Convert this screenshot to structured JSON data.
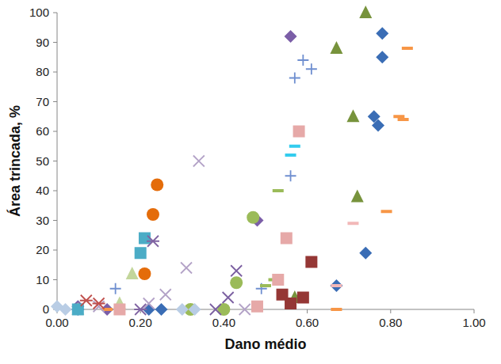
{
  "chart_data": {
    "type": "scatter",
    "x_label": "Dano médio",
    "y_label": "Área trincada, %",
    "xlim": [
      0,
      1
    ],
    "ylim": [
      0,
      100
    ],
    "xticks": [
      {
        "value": 0,
        "label": "0.00"
      },
      {
        "value": 0.2,
        "label": "0.20"
      },
      {
        "value": 0.4,
        "label": "0.40"
      },
      {
        "value": 0.6,
        "label": "0.60"
      },
      {
        "value": 0.8,
        "label": "0.80"
      },
      {
        "value": 1,
        "label": "1.00"
      }
    ],
    "yticks": [
      0,
      10,
      20,
      30,
      40,
      50,
      60,
      70,
      80,
      90,
      100
    ],
    "grid": false,
    "series": [
      {
        "color": "#3a6db5",
        "marker": "diamond",
        "x": [
          0.78,
          0.78,
          0.76,
          0.77,
          0.74,
          0.67,
          0.25,
          0.22,
          0.05
        ],
        "values": [
          93,
          85,
          65,
          62,
          19,
          8,
          0,
          0,
          0
        ]
      },
      {
        "color": "#7b5ea7",
        "marker": "diamond",
        "x": [
          0.56,
          0.48,
          0.05,
          0.12
        ],
        "values": [
          92,
          30,
          1,
          0
        ]
      },
      {
        "color": "#77933c",
        "marker": "triangle",
        "x": [
          0.74,
          0.67,
          0.71,
          0.72,
          0.57
        ],
        "values": [
          100,
          88,
          65,
          38,
          4
        ]
      },
      {
        "color": "#c3d69b",
        "marker": "triangle",
        "x": [
          0.18,
          0.15,
          0.05
        ],
        "values": [
          12,
          2,
          0
        ]
      },
      {
        "color": "#f79646",
        "marker": "dash",
        "x": [
          0.84,
          0.82,
          0.83,
          0.79,
          0.67,
          0.12
        ],
        "values": [
          88,
          65,
          64,
          33,
          0,
          0
        ]
      },
      {
        "color": "#6f8fd0",
        "marker": "plus",
        "x": [
          0.59,
          0.61,
          0.57,
          0.56,
          0.49,
          0.14
        ],
        "values": [
          84,
          81,
          78,
          45,
          7,
          7
        ]
      },
      {
        "color": "#4bacc6",
        "marker": "square",
        "x": [
          0.21,
          0.2,
          0.05
        ],
        "values": [
          24,
          19,
          0
        ]
      },
      {
        "color": "#33ccee",
        "marker": "dash",
        "x": [
          0.57,
          0.56
        ],
        "values": [
          55,
          52
        ]
      },
      {
        "color": "#9bbb59",
        "marker": "dash",
        "x": [
          0.53,
          0.52,
          0.5
        ],
        "values": [
          40,
          10,
          8
        ]
      },
      {
        "color": "#e6a9a8",
        "marker": "square",
        "x": [
          0.58,
          0.55,
          0.53,
          0.48,
          0.15
        ],
        "values": [
          60,
          24,
          10,
          1,
          0
        ]
      },
      {
        "color": "#953735",
        "marker": "square",
        "x": [
          0.61,
          0.59,
          0.54,
          0.56
        ],
        "values": [
          16,
          4,
          5,
          2
        ]
      },
      {
        "color": "#e46c0a",
        "marker": "circle",
        "x": [
          0.24,
          0.23,
          0.21
        ],
        "values": [
          42,
          32,
          12
        ]
      },
      {
        "color": "#9bbb59",
        "marker": "circle",
        "x": [
          0.47,
          0.43,
          0.32,
          0.4
        ],
        "values": [
          31,
          9,
          0,
          0
        ]
      },
      {
        "color": "#b3a2c7",
        "marker": "x",
        "x": [
          0.34,
          0.31,
          0.26,
          0.22,
          0.45,
          0.1
        ],
        "values": [
          50,
          14,
          5,
          2,
          0,
          1
        ]
      },
      {
        "color": "#7a5ea0",
        "marker": "x",
        "x": [
          0.43,
          0.41,
          0.38
        ],
        "values": [
          13,
          4,
          0
        ]
      },
      {
        "color": "#8064a2",
        "marker": "star",
        "x": [
          0.23,
          0.2
        ],
        "values": [
          23,
          0
        ]
      },
      {
        "color": "#c0504d",
        "marker": "star",
        "x": [
          0.07,
          0.1
        ],
        "values": [
          3,
          2
        ]
      },
      {
        "color": "#f2b8b8",
        "marker": "dash",
        "x": [
          0.71,
          0.67
        ],
        "values": [
          29,
          8
        ]
      },
      {
        "color": "#b9cde5",
        "marker": "diamond",
        "x": [
          0.3,
          0.33,
          0.0,
          0.02
        ],
        "values": [
          0,
          0,
          1,
          0
        ]
      }
    ]
  }
}
